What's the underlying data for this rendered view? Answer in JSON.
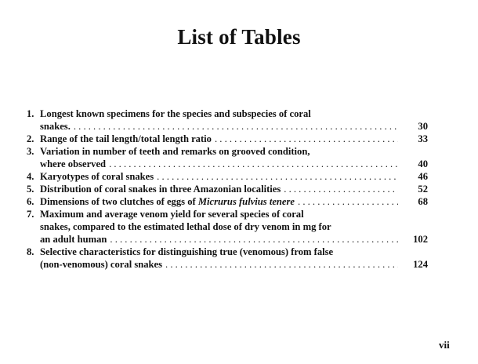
{
  "title": "List of Tables",
  "entries": [
    {
      "number": "1.",
      "lines": [
        "Longest known specimens for the species and subspecies of coral"
      ],
      "last": "snakes.",
      "italic": "",
      "page": "30"
    },
    {
      "number": "2.",
      "lines": [],
      "last": "Range of the tail length/total length ratio",
      "italic": "",
      "page": "33"
    },
    {
      "number": "3.",
      "lines": [
        "Variation in number of teeth and remarks on grooved condition,"
      ],
      "last": "where observed",
      "italic": "",
      "page": "40"
    },
    {
      "number": "4.",
      "lines": [],
      "last": "Karyotypes of coral snakes",
      "italic": "",
      "page": "46"
    },
    {
      "number": "5.",
      "lines": [],
      "last": "Distribution of coral snakes in three Amazonian localities",
      "italic": "",
      "page": "52"
    },
    {
      "number": "6.",
      "lines": [],
      "last": "Dimensions of two clutches of eggs of ",
      "italic": "Micrurus fulvius tenere",
      "page": "68"
    },
    {
      "number": "7.",
      "lines": [
        "Maximum and average venom yield for several species of coral",
        "snakes, compared to the estimated lethal dose of dry venom in mg for"
      ],
      "last": "an adult human",
      "italic": "",
      "page": "102"
    },
    {
      "number": "8.",
      "lines": [
        "Selective characteristics for distinguishing true (venomous) from false"
      ],
      "last": "(non-venomous) coral snakes",
      "italic": "",
      "page": "124"
    }
  ],
  "folio": "vii"
}
